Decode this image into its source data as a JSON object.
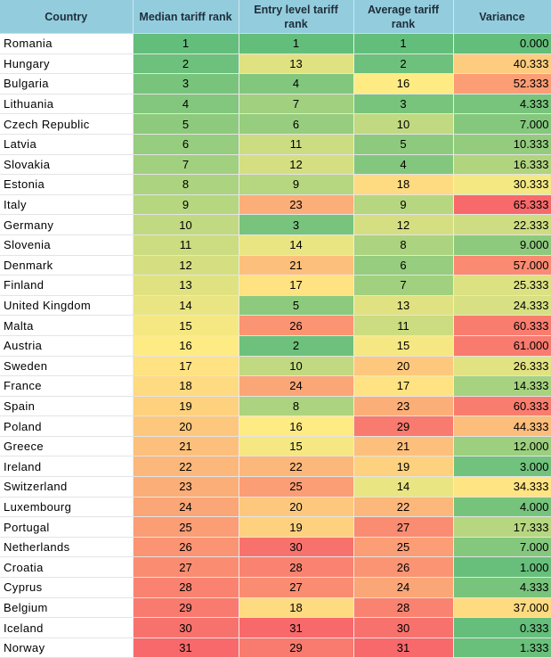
{
  "headers": [
    "Country",
    "Median tariff rank",
    "Entry level tariff rank",
    "Average tariff rank",
    "Variance"
  ],
  "rows": [
    {
      "country": "Romania",
      "median": 1,
      "entry": 1,
      "average": 1,
      "variance": "0.000"
    },
    {
      "country": "Hungary",
      "median": 2,
      "entry": 13,
      "average": 2,
      "variance": "40.333"
    },
    {
      "country": "Bulgaria",
      "median": 3,
      "entry": 4,
      "average": 16,
      "variance": "52.333"
    },
    {
      "country": "Lithuania",
      "median": 4,
      "entry": 7,
      "average": 3,
      "variance": "4.333"
    },
    {
      "country": "Czech Republic",
      "median": 5,
      "entry": 6,
      "average": 10,
      "variance": "7.000"
    },
    {
      "country": "Latvia",
      "median": 6,
      "entry": 11,
      "average": 5,
      "variance": "10.333"
    },
    {
      "country": "Slovakia",
      "median": 7,
      "entry": 12,
      "average": 4,
      "variance": "16.333"
    },
    {
      "country": "Estonia",
      "median": 8,
      "entry": 9,
      "average": 18,
      "variance": "30.333"
    },
    {
      "country": "Italy",
      "median": 9,
      "entry": 23,
      "average": 9,
      "variance": "65.333"
    },
    {
      "country": "Germany",
      "median": 10,
      "entry": 3,
      "average": 12,
      "variance": "22.333"
    },
    {
      "country": "Slovenia",
      "median": 11,
      "entry": 14,
      "average": 8,
      "variance": "9.000"
    },
    {
      "country": "Denmark",
      "median": 12,
      "entry": 21,
      "average": 6,
      "variance": "57.000"
    },
    {
      "country": "Finland",
      "median": 13,
      "entry": 17,
      "average": 7,
      "variance": "25.333"
    },
    {
      "country": "United Kingdom",
      "median": 14,
      "entry": 5,
      "average": 13,
      "variance": "24.333"
    },
    {
      "country": "Malta",
      "median": 15,
      "entry": 26,
      "average": 11,
      "variance": "60.333"
    },
    {
      "country": "Austria",
      "median": 16,
      "entry": 2,
      "average": 15,
      "variance": "61.000"
    },
    {
      "country": "Sweden",
      "median": 17,
      "entry": 10,
      "average": 20,
      "variance": "26.333"
    },
    {
      "country": "France",
      "median": 18,
      "entry": 24,
      "average": 17,
      "variance": "14.333"
    },
    {
      "country": "Spain",
      "median": 19,
      "entry": 8,
      "average": 23,
      "variance": "60.333"
    },
    {
      "country": "Poland",
      "median": 20,
      "entry": 16,
      "average": 29,
      "variance": "44.333"
    },
    {
      "country": "Greece",
      "median": 21,
      "entry": 15,
      "average": 21,
      "variance": "12.000"
    },
    {
      "country": "Ireland",
      "median": 22,
      "entry": 22,
      "average": 19,
      "variance": "3.000"
    },
    {
      "country": "Switzerland",
      "median": 23,
      "entry": 25,
      "average": 14,
      "variance": "34.333"
    },
    {
      "country": "Luxembourg",
      "median": 24,
      "entry": 20,
      "average": 22,
      "variance": "4.000"
    },
    {
      "country": "Portugal",
      "median": 25,
      "entry": 19,
      "average": 27,
      "variance": "17.333"
    },
    {
      "country": "Netherlands",
      "median": 26,
      "entry": 30,
      "average": 25,
      "variance": "7.000"
    },
    {
      "country": "Croatia",
      "median": 27,
      "entry": 28,
      "average": 26,
      "variance": "1.000"
    },
    {
      "country": "Cyprus",
      "median": 28,
      "entry": 27,
      "average": 24,
      "variance": "4.333"
    },
    {
      "country": "Belgium",
      "median": 29,
      "entry": 18,
      "average": 28,
      "variance": "37.000"
    },
    {
      "country": "Iceland",
      "median": 30,
      "entry": 31,
      "average": 30,
      "variance": "0.333"
    },
    {
      "country": "Norway",
      "median": 31,
      "entry": 29,
      "average": 31,
      "variance": "1.333"
    }
  ],
  "scale_colors": {
    "low": "#63be7b",
    "mid": "#ffeb84",
    "high": "#f8696b"
  }
}
